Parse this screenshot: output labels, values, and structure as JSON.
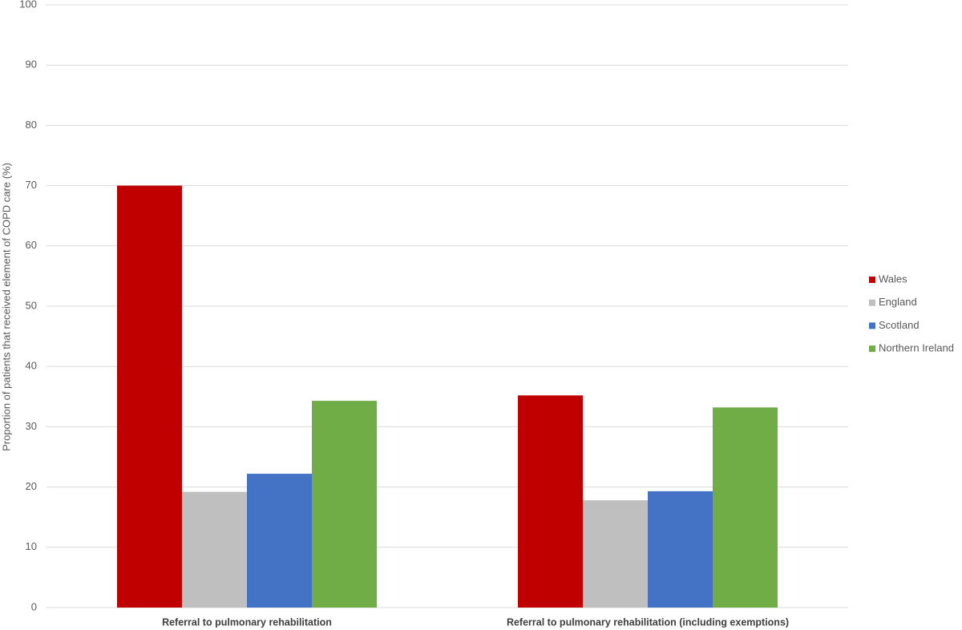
{
  "chart_data": {
    "type": "bar",
    "y_label": "Proportion of patients that received element of COPD care (%)",
    "categories": [
      "Referral to pulmonary rehabilitation",
      "Referral to pulmonary rehabilitation (including exemptions)"
    ],
    "series": [
      {
        "name": "Wales",
        "color": "#c00000",
        "values": [
          70,
          35.2
        ]
      },
      {
        "name": "England",
        "color": "#bfbfbf",
        "values": [
          19.2,
          17.8
        ]
      },
      {
        "name": "Scotland",
        "color": "#4472c4",
        "values": [
          22.2,
          19.3
        ]
      },
      {
        "name": "Northern Ireland",
        "color": "#70ad47",
        "values": [
          34.3,
          33.2
        ]
      }
    ],
    "ylim": [
      0,
      100
    ],
    "yticks": [
      0,
      10,
      20,
      30,
      40,
      50,
      60,
      70,
      80,
      90,
      100
    ],
    "grid": true,
    "legend": "right"
  }
}
